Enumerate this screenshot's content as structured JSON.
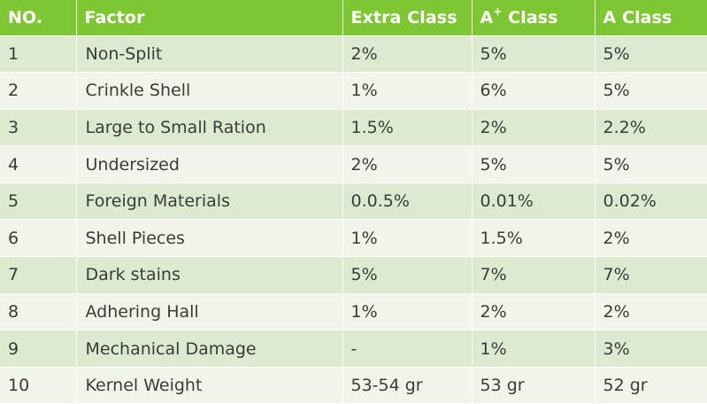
{
  "table": {
    "headers": {
      "no": "NO.",
      "factor": "Factor",
      "extra": "Extra Class",
      "a_plus_base": "A",
      "a_plus_sup": "+",
      "a_plus_rest": " Class",
      "a": "A Class"
    },
    "rows": [
      {
        "no": "1",
        "factor": "Non-Split",
        "extra": "2%",
        "a_plus": "5%",
        "a": "5%"
      },
      {
        "no": "2",
        "factor": "Crinkle Shell",
        "extra": "1%",
        "a_plus": "6%",
        "a": "5%"
      },
      {
        "no": "3",
        "factor": "Large to Small Ration",
        "extra": "1.5%",
        "a_plus": "2%",
        "a": "2.2%"
      },
      {
        "no": "4",
        "factor": "Undersized",
        "extra": "2%",
        "a_plus": "5%",
        "a": "5%"
      },
      {
        "no": "5",
        "factor": "Foreign Materials",
        "extra": "0.0.5%",
        "a_plus": "0.01%",
        "a": "0.02%"
      },
      {
        "no": "6",
        "factor": "Shell Pieces",
        "extra": "1%",
        "a_plus": "1.5%",
        "a": "2%"
      },
      {
        "no": "7",
        "factor": "Dark stains",
        "extra": "5%",
        "a_plus": "7%",
        "a": "7%"
      },
      {
        "no": "8",
        "factor": "Adhering Hall",
        "extra": "1%",
        "a_plus": "2%",
        "a": "2%"
      },
      {
        "no": "9",
        "factor": "Mechanical Damage",
        "extra": "-",
        "a_plus": "1%",
        "a": "3%"
      },
      {
        "no": "10",
        "factor": "Kernel Weight",
        "extra": "53-54 gr",
        "a_plus": "53 gr",
        "a": "52 gr"
      }
    ]
  },
  "colors": {
    "header_bg": "#7dc832",
    "row_dark": "#dcead0",
    "row_light": "#eff5e9"
  }
}
